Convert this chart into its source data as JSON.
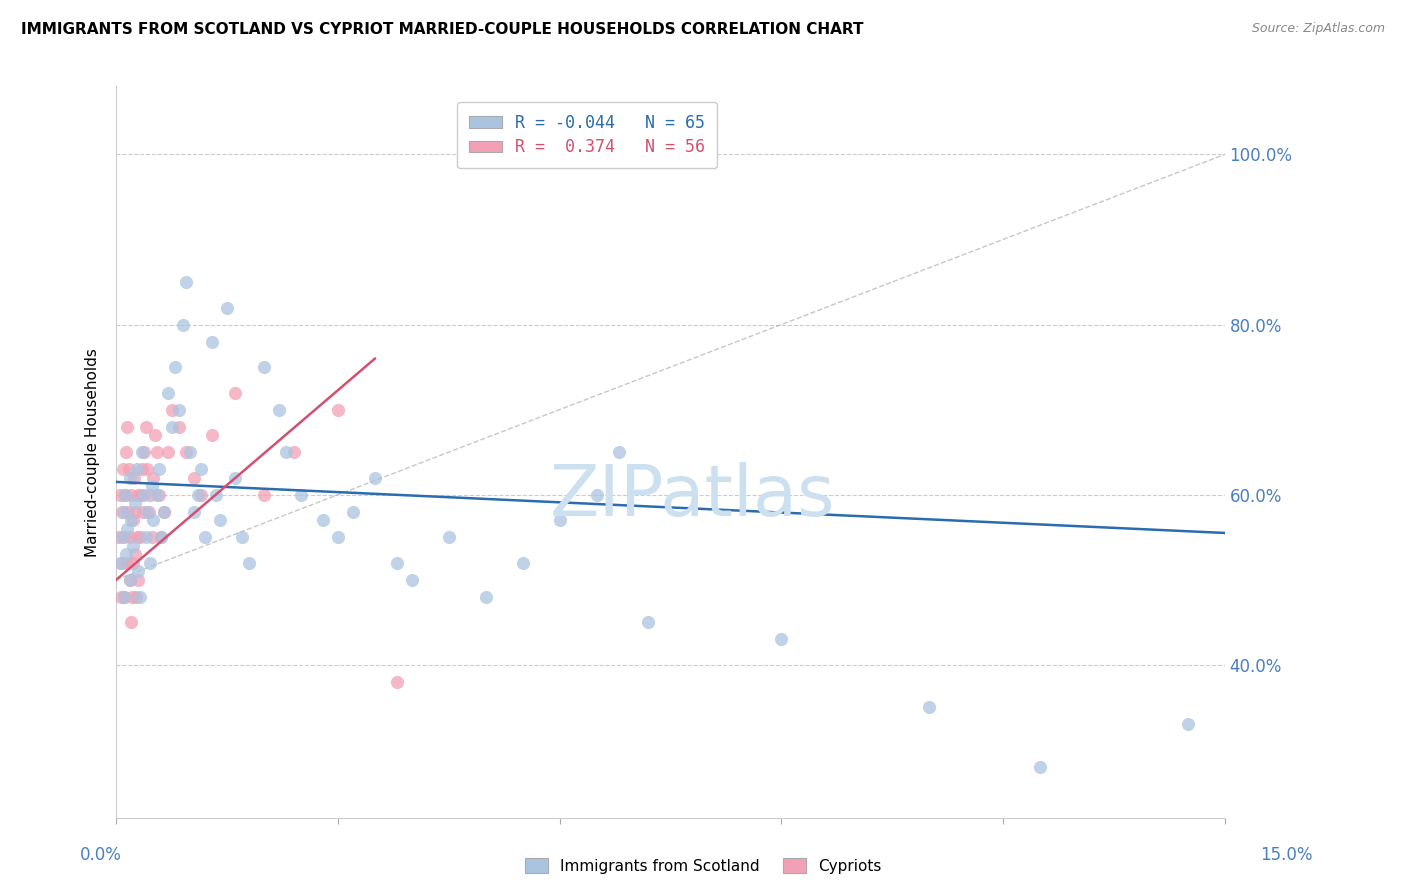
{
  "title": "IMMIGRANTS FROM SCOTLAND VS CYPRIOT MARRIED-COUPLE HOUSEHOLDS CORRELATION CHART",
  "source": "Source: ZipAtlas.com",
  "ylabel": "Married-couple Households",
  "xlim": [
    0.0,
    15.0
  ],
  "ylim": [
    22.0,
    108.0
  ],
  "y_ticks": [
    40.0,
    60.0,
    80.0,
    100.0
  ],
  "y_tick_labels": [
    "40.0%",
    "60.0%",
    "80.0%",
    "100.0%"
  ],
  "x_tick_labels": [
    "0.0%",
    "15.0%"
  ],
  "scotland_R": -0.044,
  "scotland_N": 65,
  "cypriot_R": 0.374,
  "cypriot_N": 56,
  "scotland_color": "#aac4e0",
  "scotland_line_color": "#2b6cb0",
  "cypriot_color": "#f2a0b5",
  "cypriot_line_color": "#d45070",
  "watermark_text": "ZIPatlas",
  "watermark_color": "#cce0f0",
  "sc_line_x": [
    0.0,
    15.0
  ],
  "sc_line_y": [
    61.5,
    55.5
  ],
  "cy_line_x": [
    0.0,
    3.5
  ],
  "cy_line_y": [
    50.0,
    76.0
  ],
  "diag_line_x": [
    0.0,
    15.0
  ],
  "diag_line_y": [
    50.0,
    100.0
  ],
  "sc_x": [
    0.05,
    0.08,
    0.1,
    0.1,
    0.12,
    0.13,
    0.15,
    0.18,
    0.18,
    0.2,
    0.22,
    0.25,
    0.28,
    0.3,
    0.32,
    0.35,
    0.38,
    0.4,
    0.42,
    0.45,
    0.48,
    0.5,
    0.55,
    0.58,
    0.6,
    0.65,
    0.7,
    0.75,
    0.8,
    0.85,
    0.9,
    0.95,
    1.0,
    1.05,
    1.1,
    1.15,
    1.2,
    1.3,
    1.35,
    1.4,
    1.5,
    1.6,
    1.7,
    1.8,
    2.0,
    2.2,
    2.3,
    2.5,
    2.8,
    3.0,
    3.2,
    3.5,
    3.8,
    4.0,
    4.5,
    5.0,
    5.5,
    6.0,
    6.5,
    6.8,
    7.2,
    9.0,
    11.0,
    12.5,
    14.5
  ],
  "sc_y": [
    52,
    55,
    48,
    58,
    60,
    53,
    56,
    50,
    62,
    57,
    54,
    59,
    63,
    51,
    48,
    65,
    60,
    55,
    58,
    52,
    61,
    57,
    60,
    63,
    55,
    58,
    72,
    68,
    75,
    70,
    80,
    85,
    65,
    58,
    60,
    63,
    55,
    78,
    60,
    57,
    82,
    62,
    55,
    52,
    75,
    70,
    65,
    60,
    57,
    55,
    58,
    62,
    52,
    50,
    55,
    48,
    52,
    57,
    60,
    65,
    45,
    43,
    35,
    28,
    33
  ],
  "cy_x": [
    0.03,
    0.05,
    0.06,
    0.08,
    0.08,
    0.09,
    0.1,
    0.1,
    0.12,
    0.13,
    0.14,
    0.15,
    0.16,
    0.17,
    0.18,
    0.18,
    0.2,
    0.2,
    0.21,
    0.22,
    0.23,
    0.24,
    0.25,
    0.26,
    0.27,
    0.28,
    0.3,
    0.3,
    0.32,
    0.33,
    0.35,
    0.36,
    0.38,
    0.4,
    0.42,
    0.44,
    0.46,
    0.48,
    0.5,
    0.52,
    0.55,
    0.58,
    0.6,
    0.65,
    0.7,
    0.75,
    0.85,
    0.95,
    1.05,
    1.15,
    1.3,
    1.6,
    2.0,
    2.4,
    3.0,
    3.8
  ],
  "cy_y": [
    55,
    60,
    48,
    52,
    58,
    63,
    55,
    48,
    60,
    65,
    68,
    52,
    58,
    63,
    50,
    55,
    60,
    45,
    48,
    52,
    57,
    62,
    58,
    53,
    48,
    55,
    60,
    50,
    55,
    60,
    63,
    58,
    65,
    68,
    63,
    58,
    60,
    55,
    62,
    67,
    65,
    60,
    55,
    58,
    65,
    70,
    68,
    65,
    62,
    60,
    67,
    72,
    60,
    65,
    70,
    38
  ]
}
